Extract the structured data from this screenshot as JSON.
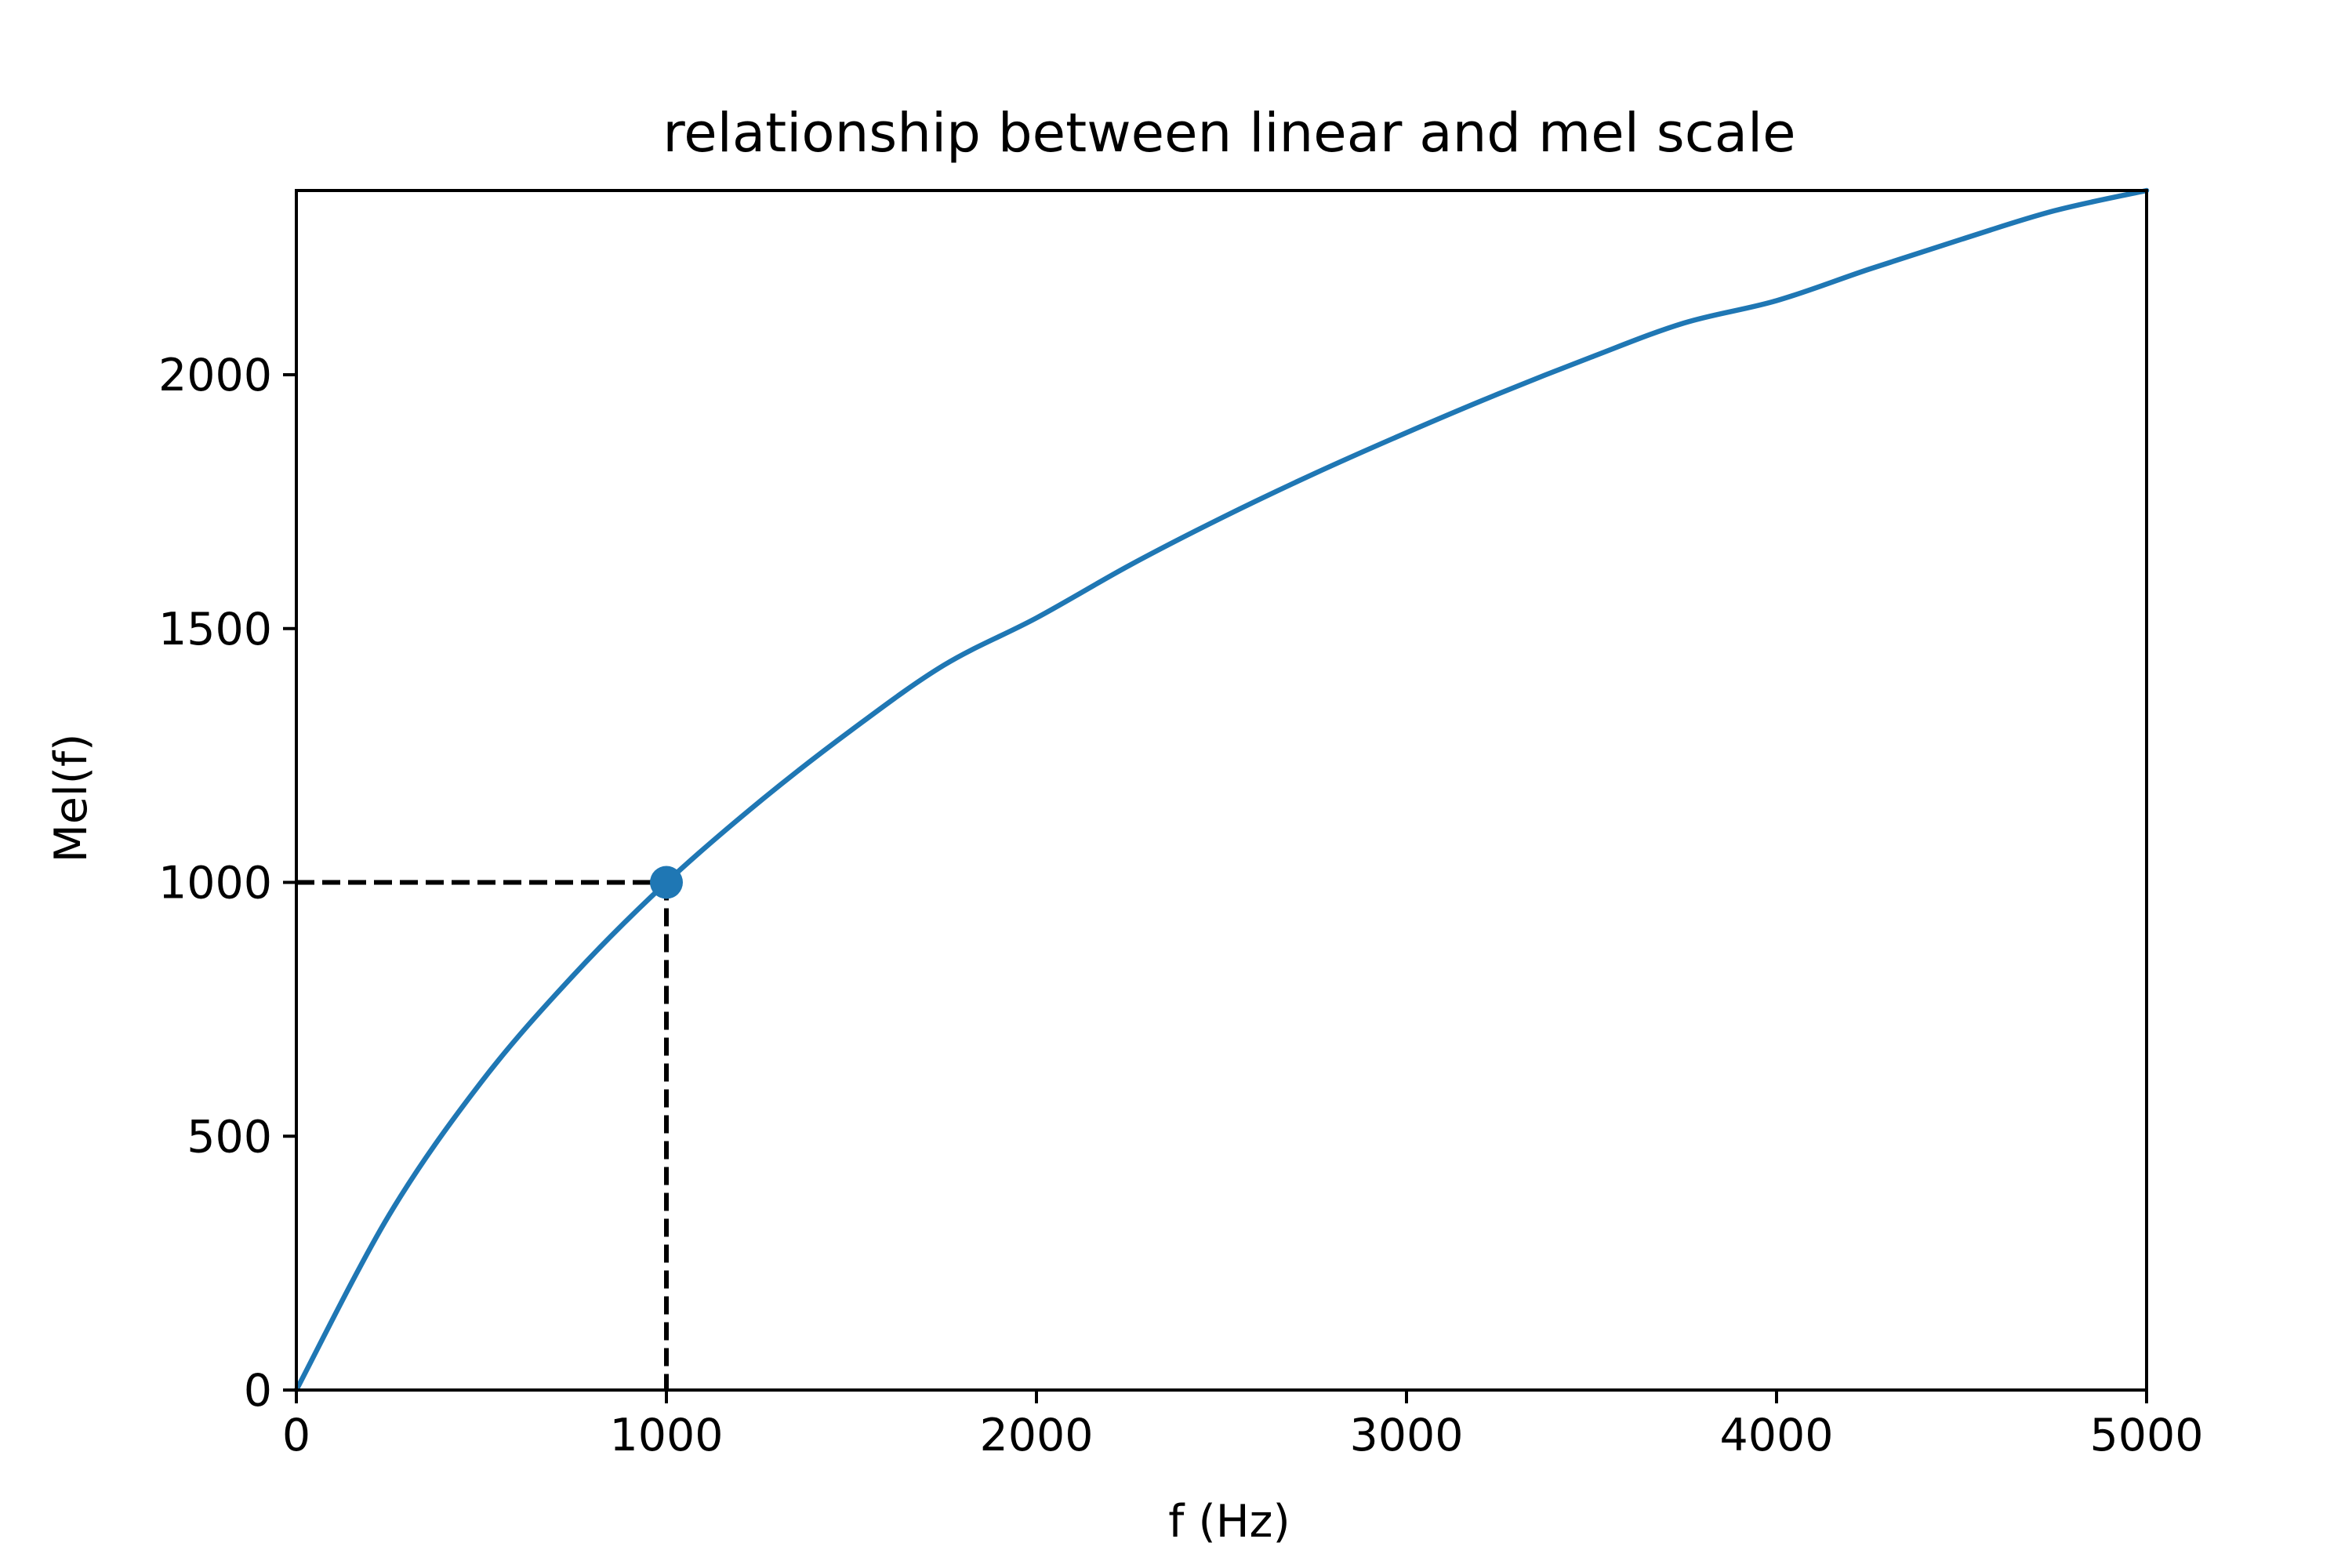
{
  "chart_data": {
    "type": "line",
    "title": "relationship between linear and mel scale",
    "xlabel": "f (Hz)",
    "ylabel": "Mel(f)",
    "xlim": [
      0,
      5000
    ],
    "ylim": [
      0,
      2363
    ],
    "xticks": [
      0,
      1000,
      2000,
      3000,
      4000,
      5000
    ],
    "yticks": [
      0,
      500,
      1000,
      1500,
      2000
    ],
    "x_tick_labels": [
      "0",
      "1000",
      "2000",
      "3000",
      "4000",
      "5000"
    ],
    "y_tick_labels": [
      "0",
      "500",
      "1000",
      "1500",
      "2000"
    ],
    "grid": false,
    "series": [
      {
        "x": [
          0,
          250,
          500,
          750,
          1000,
          1250,
          1500,
          1750,
          2000,
          2250,
          2500,
          2750,
          3000,
          3250,
          3500,
          3750,
          4000,
          4250,
          4500,
          4750,
          5000
        ],
        "values": [
          0,
          344,
          607,
          818,
          1000,
          1158,
          1300,
          1428,
          1521,
          1624,
          1718,
          1805,
          1886,
          1963,
          2035,
          2102,
          2146,
          2208,
          2267,
          2323,
          2363
        ],
        "color": "#1f77b4"
      }
    ],
    "highlight_point": {
      "x": 1000,
      "y": 1000,
      "color": "#1f77b4"
    },
    "reference_lines": {
      "color": "#000000",
      "style": "dashed",
      "x": 1000,
      "y": 1000
    }
  }
}
